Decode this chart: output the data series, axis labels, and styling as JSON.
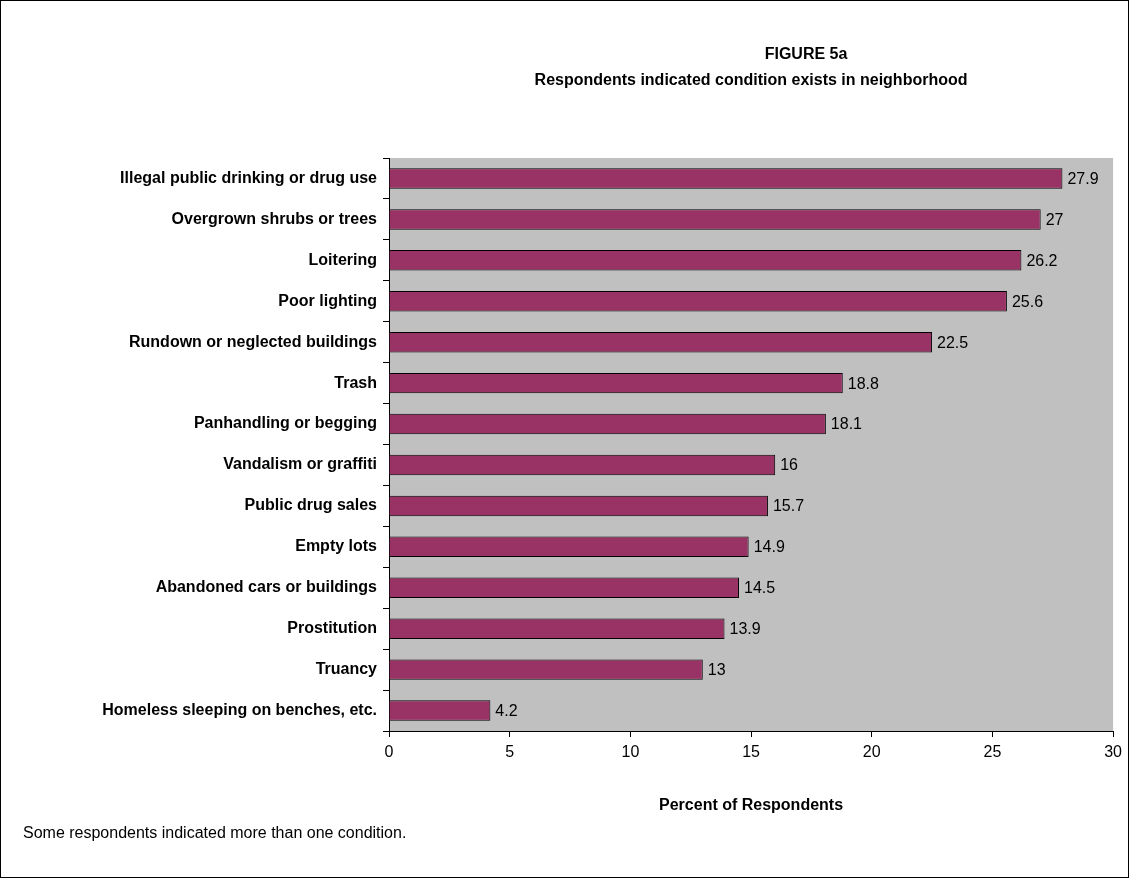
{
  "chart_data": {
    "type": "bar",
    "orientation": "horizontal",
    "title": "FIGURE 5a",
    "subtitle": "Respondents indicated condition exists in neighborhood",
    "xlabel": "Percent of Respondents",
    "categories": [
      "Illegal public drinking or drug use",
      "Overgrown shrubs or trees",
      "Loitering",
      "Poor lighting",
      "Rundown or neglected buildings",
      "Trash",
      "Panhandling or begging",
      "Vandalism or graffiti",
      "Public drug sales",
      "Empty lots",
      "Abandoned cars or buildings",
      "Prostitution",
      "Truancy",
      "Homeless sleeping on benches, etc."
    ],
    "values": [
      27.9,
      27,
      26.2,
      25.6,
      22.5,
      18.8,
      18.1,
      16,
      15.7,
      14.9,
      14.5,
      13.9,
      13,
      4.2
    ],
    "color": "#993366",
    "xlim": [
      0,
      30
    ],
    "xticks": [
      0,
      5,
      10,
      15,
      20,
      25,
      30
    ],
    "grid": false,
    "legend": false,
    "data_labels": true,
    "annotations": [
      "Some respondents indicated more than one condition."
    ]
  }
}
